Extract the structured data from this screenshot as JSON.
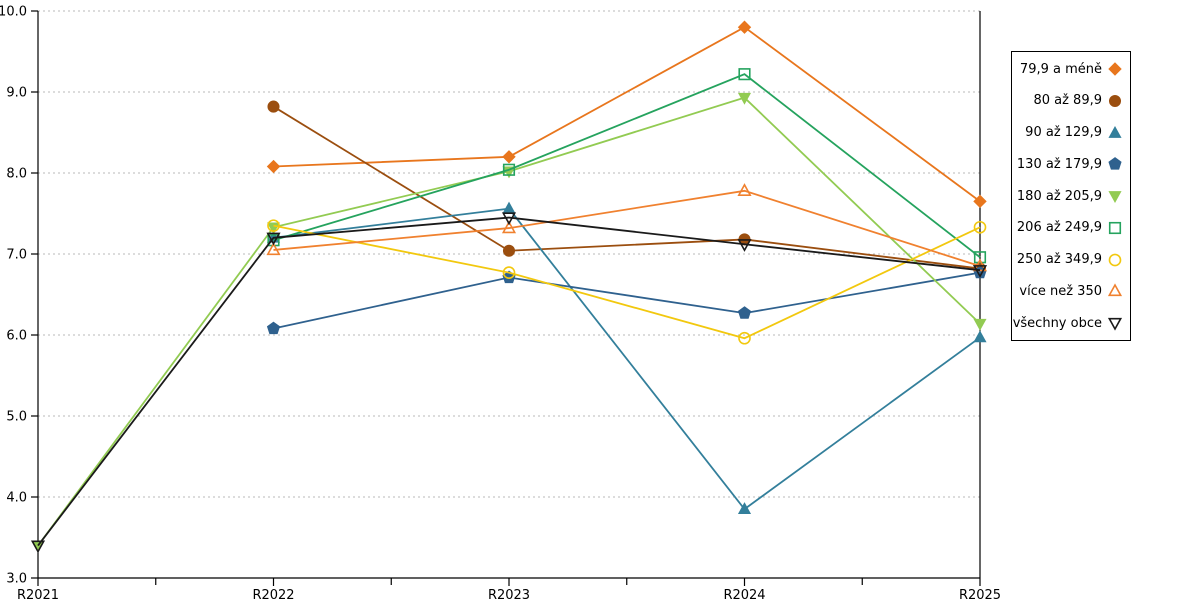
{
  "chart_data": {
    "type": "line",
    "title": "",
    "xlabel": "",
    "ylabel": "",
    "categories": [
      "R2021",
      "R2022",
      "R2023",
      "R2024",
      "R2025"
    ],
    "y_axis": {
      "min": 3.0,
      "max": 10.0,
      "step": 1.0,
      "tick_labels": [
        "3.0",
        "4.0",
        "5.0",
        "6.0",
        "7.0",
        "8.0",
        "9.0",
        "10.0"
      ]
    },
    "grid": {
      "horizontal_dashed": true,
      "color": "#b9b9b9"
    },
    "axis_color": "#000000",
    "legend_position": "right",
    "series": [
      {
        "name": "79,9 a méně",
        "color": "#E8761D",
        "marker": "diamond",
        "fill": "filled",
        "values": [
          null,
          8.08,
          8.2,
          9.8,
          7.65
        ]
      },
      {
        "name": "80 až 89,9",
        "color": "#9B4E0F",
        "marker": "circle",
        "fill": "filled",
        "values": [
          null,
          8.82,
          7.04,
          7.18,
          6.82
        ]
      },
      {
        "name": "90 až 129,9",
        "color": "#337F9B",
        "marker": "triangle-up",
        "fill": "filled",
        "values": [
          null,
          7.2,
          7.56,
          3.85,
          5.97
        ]
      },
      {
        "name": "130 až 179,9",
        "color": "#2F618E",
        "marker": "pentagon",
        "fill": "filled",
        "values": [
          null,
          6.08,
          6.71,
          6.27,
          6.77
        ]
      },
      {
        "name": "180 až 205,9",
        "color": "#92CB52",
        "marker": "triangle-down",
        "fill": "filled",
        "values": [
          3.4,
          7.33,
          8.02,
          8.93,
          6.14
        ]
      },
      {
        "name": "206 až 249,9",
        "color": "#25A35E",
        "marker": "square",
        "fill": "open",
        "values": [
          null,
          7.17,
          8.04,
          9.22,
          6.96
        ]
      },
      {
        "name": "250 až 349,9",
        "color": "#F2C80E",
        "marker": "circle",
        "fill": "open",
        "values": [
          null,
          7.35,
          6.77,
          5.96,
          7.33
        ]
      },
      {
        "name": "více než 350",
        "color": "#F0812F",
        "marker": "triangle-up",
        "fill": "open",
        "values": [
          null,
          7.05,
          7.32,
          7.78,
          6.85
        ]
      },
      {
        "name": "všechny obce",
        "color": "#1A1A1A",
        "marker": "triangle-down",
        "fill": "open",
        "values": [
          3.4,
          7.2,
          7.45,
          7.12,
          6.8
        ]
      }
    ]
  }
}
